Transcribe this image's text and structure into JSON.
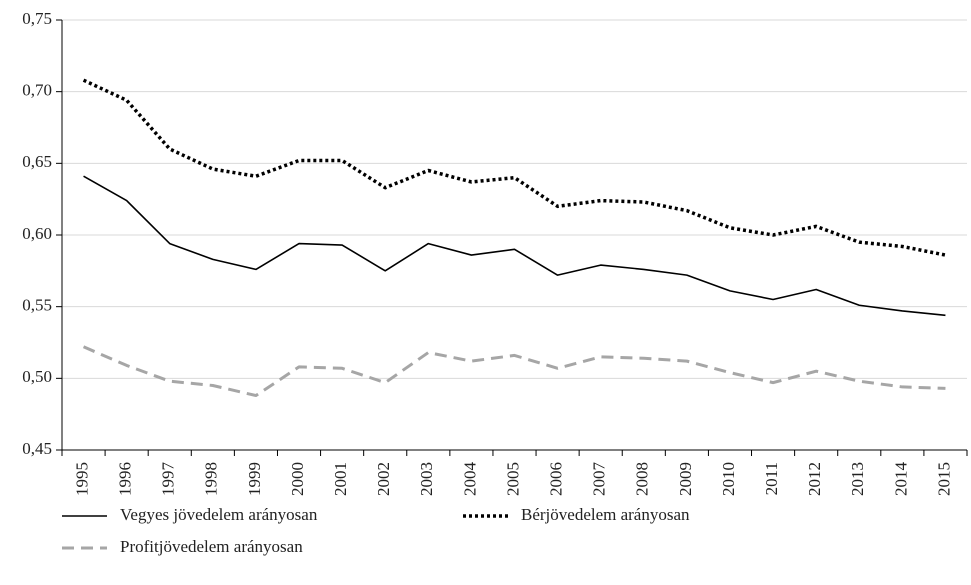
{
  "chart_data": {
    "type": "line",
    "categories": [
      "1995",
      "1996",
      "1997",
      "1998",
      "1999",
      "2000",
      "2001",
      "2002",
      "2003",
      "2004",
      "2005",
      "2006",
      "2007",
      "2008",
      "2009",
      "2010",
      "2011",
      "2012",
      "2013",
      "2014",
      "2015"
    ],
    "series": [
      {
        "name": "Vegyes jövedelem arányosan",
        "color": "#000000",
        "dash": "solid",
        "values": [
          0.641,
          0.624,
          0.594,
          0.583,
          0.576,
          0.594,
          0.593,
          0.575,
          0.594,
          0.586,
          0.59,
          0.572,
          0.579,
          0.576,
          0.572,
          0.561,
          0.555,
          0.562,
          0.551,
          0.547,
          0.544
        ]
      },
      {
        "name": "Bérjövedelem arányosan",
        "color": "#000000",
        "dash": "dotted",
        "values": [
          0.708,
          0.694,
          0.66,
          0.646,
          0.641,
          0.652,
          0.652,
          0.633,
          0.645,
          0.637,
          0.64,
          0.62,
          0.624,
          0.623,
          0.617,
          0.605,
          0.6,
          0.606,
          0.595,
          0.592,
          0.586
        ]
      },
      {
        "name": "Profitjövedelem arányosan",
        "color": "#a6a6a6",
        "dash": "dashed",
        "values": [
          0.522,
          0.509,
          0.498,
          0.495,
          0.488,
          0.508,
          0.507,
          0.497,
          0.518,
          0.512,
          0.516,
          0.507,
          0.515,
          0.514,
          0.512,
          0.504,
          0.497,
          0.505,
          0.498,
          0.494,
          0.493
        ]
      }
    ],
    "ylim": [
      0.45,
      0.75
    ],
    "yticks": [
      {
        "value": 0.45,
        "label": "0,45"
      },
      {
        "value": 0.5,
        "label": "0,50"
      },
      {
        "value": 0.55,
        "label": "0,55"
      },
      {
        "value": 0.6,
        "label": "0,60"
      },
      {
        "value": 0.65,
        "label": "0,65"
      },
      {
        "value": 0.7,
        "label": "0,70"
      },
      {
        "value": 0.75,
        "label": "0,75"
      }
    ],
    "grid": true
  }
}
